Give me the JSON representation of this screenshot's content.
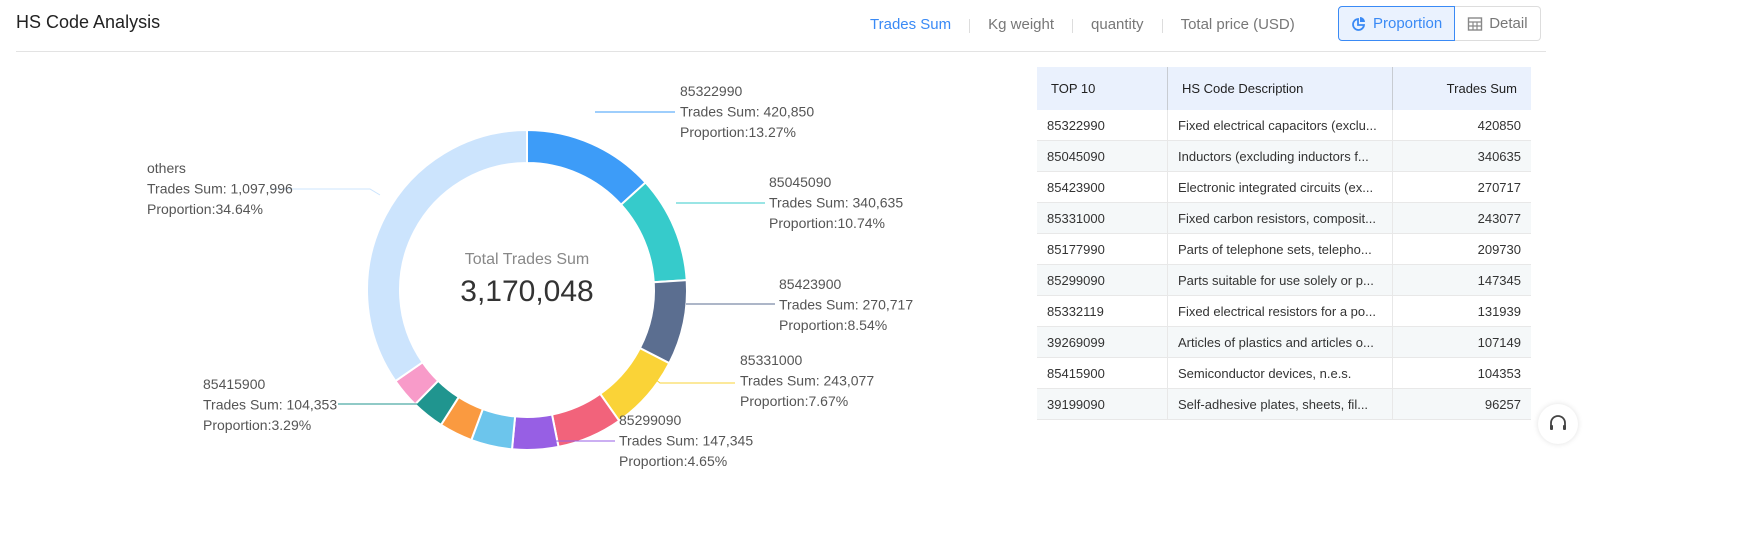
{
  "header": {
    "title": "HS Code Analysis"
  },
  "metric_tabs": [
    {
      "label": "Trades Sum",
      "active": true
    },
    {
      "label": "Kg weight"
    },
    {
      "label": "quantity"
    },
    {
      "label": "Total price (USD)"
    }
  ],
  "view_toggle": {
    "proportion": "Proportion",
    "detail": "Detail",
    "active": "Proportion"
  },
  "chart_data": {
    "type": "pie",
    "donut": true,
    "center_label": "Total Trades Sum",
    "center_value": "3,170,048",
    "slices": [
      {
        "name": "85322990",
        "value": 420850,
        "display": "420,850",
        "proportion": "13.27%",
        "color": "#3d9cf8",
        "labeled": true
      },
      {
        "name": "85045090",
        "value": 340635,
        "display": "340,635",
        "proportion": "10.74%",
        "color": "#36cbcb",
        "labeled": true
      },
      {
        "name": "85423900",
        "value": 270717,
        "display": "270,717",
        "proportion": "8.54%",
        "color": "#5b6e90",
        "labeled": true
      },
      {
        "name": "85331000",
        "value": 243077,
        "display": "243,077",
        "proportion": "7.67%",
        "color": "#fad337",
        "labeled": true
      },
      {
        "name": "85177990",
        "value": 209730,
        "color": "#f2637b",
        "labeled": false
      },
      {
        "name": "85299090",
        "value": 147345,
        "display": "147,345",
        "proportion": "4.65%",
        "color": "#975fe4",
        "labeled": true
      },
      {
        "name": "85332119",
        "value": 131939,
        "color": "#6cc5ec",
        "labeled": false
      },
      {
        "name": "39269099",
        "value": 107149,
        "color": "#fa9a40",
        "labeled": false
      },
      {
        "name": "85415900",
        "value": 104353,
        "display": "104,353",
        "proportion": "3.29%",
        "color": "#20958f",
        "labeled": true
      },
      {
        "name": "39199090",
        "value": 96257,
        "color": "#f89bc9",
        "labeled": false
      },
      {
        "name": "others",
        "value": 1097996,
        "display": "1,097,996",
        "proportion": "34.64%",
        "color": "#cce4fd",
        "labeled": true
      }
    ],
    "label_prefix_value": "Trades Sum: ",
    "label_prefix_proportion": "Proportion:"
  },
  "table": {
    "headers": [
      "TOP 10",
      "HS Code Description",
      "Trades Sum"
    ],
    "rows": [
      [
        "85322990",
        "Fixed electrical capacitors (exclu...",
        "420850"
      ],
      [
        "85045090",
        "Inductors (excluding inductors f...",
        "340635"
      ],
      [
        "85423900",
        "Electronic integrated circuits (ex...",
        "270717"
      ],
      [
        "85331000",
        "Fixed carbon resistors, composit...",
        "243077"
      ],
      [
        "85177990",
        "Parts of telephone sets, telepho...",
        "209730"
      ],
      [
        "85299090",
        "Parts suitable for use solely or p...",
        "147345"
      ],
      [
        "85332119",
        "Fixed electrical resistors for a po...",
        "131939"
      ],
      [
        "39269099",
        "Articles of plastics and articles o...",
        "107149"
      ],
      [
        "85415900",
        "Semiconductor devices, n.e.s.",
        "104353"
      ],
      [
        "39199090",
        "Self-adhesive plates, sheets, fil...",
        "96257"
      ]
    ]
  }
}
